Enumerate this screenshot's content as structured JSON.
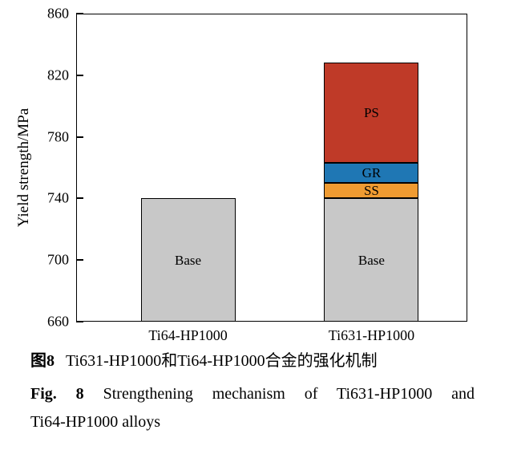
{
  "chart_data": {
    "type": "bar",
    "subtype": "stacked",
    "title": "",
    "xlabel": "",
    "ylabel": "Yield strength/MPa",
    "ylim": [
      660,
      860
    ],
    "yticks": [
      660,
      700,
      740,
      780,
      820,
      860
    ],
    "baseline": 660,
    "grid": false,
    "legend": "none",
    "bar_outline_color": "#000000",
    "categories": [
      "Ti64-HP1000",
      "Ti631-HP1000"
    ],
    "bars": [
      {
        "category": "Ti64-HP1000",
        "total": 740,
        "segments": [
          {
            "label": "Base",
            "from": 660,
            "to": 740,
            "color": "#c8c8c8"
          }
        ]
      },
      {
        "category": "Ti631-HP1000",
        "total": 828,
        "segments": [
          {
            "label": "Base",
            "from": 660,
            "to": 740,
            "color": "#c8c8c8"
          },
          {
            "label": "SS",
            "from": 740,
            "to": 750,
            "color": "#ef9b32"
          },
          {
            "label": "GR",
            "from": 750,
            "to": 763,
            "color": "#1f77b4"
          },
          {
            "label": "PS",
            "from": 763,
            "to": 828,
            "color": "#bf3a28"
          }
        ]
      }
    ]
  },
  "caption": {
    "zh_prefix": "图8",
    "zh_text": "Ti631-HP1000和Ti64-HP1000合金的强化机制",
    "en_prefix": "Fig. 8",
    "en_line1": "Strengthening mechanism of Ti631-HP1000 and",
    "en_line2": "Ti64-HP1000 alloys"
  }
}
